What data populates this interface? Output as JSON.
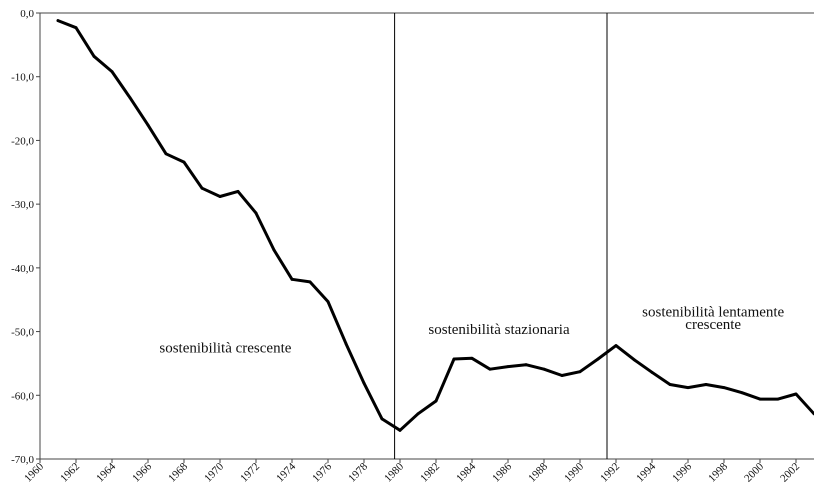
{
  "chart_data": {
    "type": "line",
    "title": "",
    "xlabel": "",
    "ylabel": "",
    "ylim": [
      -70,
      0
    ],
    "y_ticks": [
      0,
      -10,
      -20,
      -30,
      -40,
      -50,
      -60,
      -70
    ],
    "y_tick_labels": [
      "0,0",
      "-10,0",
      "-20,0",
      "-30,0",
      "-40,0",
      "-50,0",
      "-60,0",
      "-70,0"
    ],
    "x_range": [
      1960,
      2003
    ],
    "x_ticks": [
      1960,
      1962,
      1964,
      1966,
      1968,
      1970,
      1972,
      1974,
      1976,
      1978,
      1980,
      1982,
      1984,
      1986,
      1988,
      1990,
      1992,
      1994,
      1996,
      1998,
      2000,
      2002
    ],
    "x_tick_labels": [
      "1960",
      "1962",
      "1964",
      "1966",
      "1968",
      "1970",
      "1972",
      "1974",
      "1976",
      "1978",
      "1980",
      "1982",
      "1984",
      "1986",
      "1988",
      "1990",
      "1992",
      "1994",
      "1996",
      "1998",
      "2000",
      "2002"
    ],
    "grid": false,
    "legend": "none",
    "line_color": "#000000",
    "series": [
      {
        "x": [
          1961,
          1962,
          1963,
          1964,
          1965,
          1966,
          1967,
          1968,
          1969,
          1970,
          1971,
          1972,
          1973,
          1974,
          1975,
          1976,
          1977,
          1978,
          1979,
          1980,
          1981,
          1982,
          1983,
          1984,
          1985,
          1986,
          1987,
          1988,
          1989,
          1990,
          1991,
          1992,
          1993,
          1994,
          1995,
          1996,
          1997,
          1998,
          1999,
          2000,
          2001,
          2002,
          2003
        ],
        "values": [
          -1.2,
          -2.3,
          -6.8,
          -9.2,
          -13.3,
          -17.6,
          -22.1,
          -23.4,
          -27.5,
          -28.8,
          -28.0,
          -31.4,
          -37.2,
          -41.8,
          -42.2,
          -45.3,
          -51.9,
          -58.1,
          -63.7,
          -65.5,
          -62.9,
          -60.9,
          -54.3,
          -54.2,
          -55.9,
          -55.5,
          -55.2,
          -55.9,
          -56.9,
          -56.3,
          -54.3,
          -52.2,
          -54.4,
          -56.4,
          -58.3,
          -58.8,
          -58.3,
          -58.8,
          -59.6,
          -60.6,
          -60.6,
          -59.8,
          -62.9
        ]
      }
    ],
    "vertical_markers": [
      1979.7,
      1991.5
    ],
    "annotations": [
      {
        "text": "sostenibilità crescente",
        "x": 1970.3,
        "y": -53.3
      },
      {
        "text": "sostenibilità stazionaria",
        "x": 1985.5,
        "y": -50.4
      },
      {
        "text": "sostenibilità lentamente",
        "x": 1997.4,
        "y": -47.6
      },
      {
        "text": "crescente",
        "x": 1997.4,
        "y": -49.6
      }
    ]
  }
}
